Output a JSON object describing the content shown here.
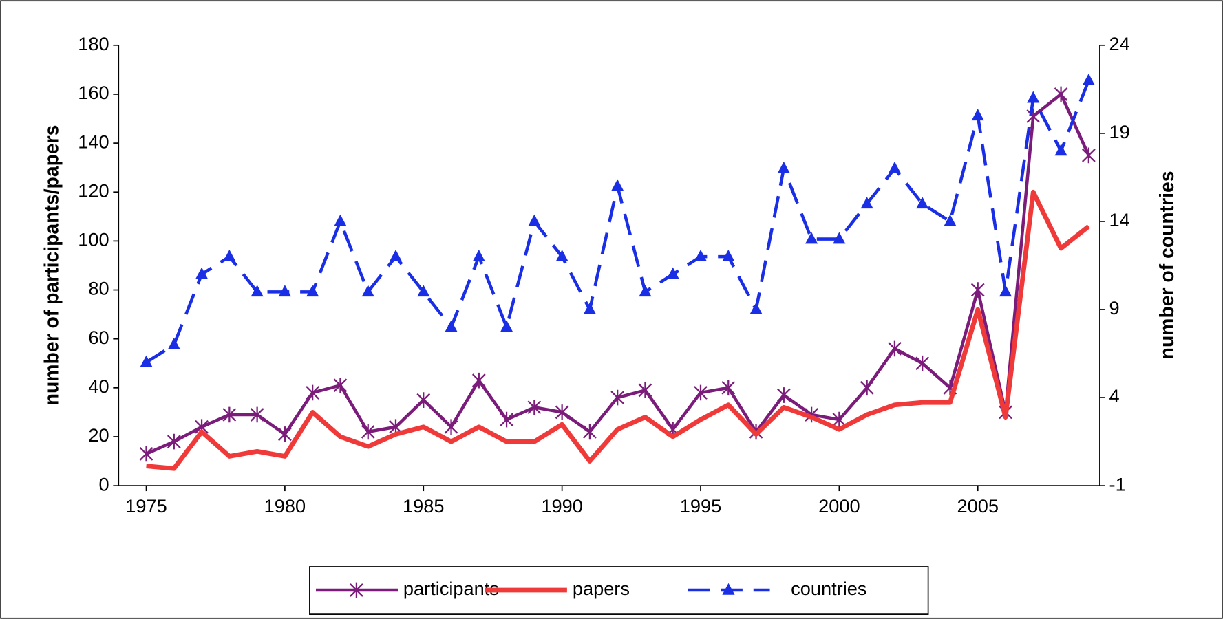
{
  "chart_data": {
    "type": "line",
    "ylabel": "number of participants/papers",
    "y2label": "number of countries",
    "x": [
      1975,
      1976,
      1977,
      1978,
      1979,
      1980,
      1981,
      1982,
      1983,
      1984,
      1985,
      1986,
      1987,
      1988,
      1989,
      1990,
      1991,
      1992,
      1993,
      1994,
      1995,
      1996,
      1997,
      1998,
      1999,
      2000,
      2001,
      2002,
      2003,
      2004,
      2005,
      2006,
      2007,
      2008,
      2009
    ],
    "series": [
      {
        "name": "participants",
        "color": "#7b1c7b",
        "marker": "asterisk",
        "dashed": false,
        "values": [
          13,
          18,
          24,
          29,
          29,
          21,
          38,
          41,
          22,
          24,
          35,
          24,
          43,
          27,
          32,
          30,
          22,
          36,
          39,
          23,
          38,
          40,
          22,
          37,
          29,
          27,
          40,
          56,
          50,
          40,
          80,
          30,
          151,
          160,
          135
        ]
      },
      {
        "name": "papers",
        "color": "#f03a3a",
        "marker": "none",
        "dashed": false,
        "values": [
          8,
          7,
          22,
          12,
          14,
          12,
          30,
          20,
          16,
          21,
          24,
          18,
          24,
          18,
          18,
          25,
          10,
          23,
          28,
          20,
          27,
          33,
          21,
          32,
          28,
          23,
          29,
          33,
          34,
          34,
          72,
          28,
          120,
          97,
          106
        ]
      },
      {
        "name": "countries",
        "color": "#1a2ee6",
        "marker": "triangle",
        "dashed": true,
        "axis": "y2",
        "values": [
          6,
          7,
          11,
          12,
          10,
          10,
          10,
          14,
          10,
          12,
          10,
          8,
          12,
          8,
          14,
          12,
          9,
          16,
          10,
          11,
          12,
          12,
          9,
          17,
          13,
          13,
          15,
          17,
          15,
          14,
          20,
          10,
          21,
          18,
          22
        ]
      }
    ],
    "xlim": [
      1974,
      2009.4
    ],
    "xticks": [
      1975,
      1980,
      1985,
      1990,
      1995,
      2000,
      2005
    ],
    "ylim": [
      0,
      180
    ],
    "yticks": [
      0,
      20,
      40,
      60,
      80,
      100,
      120,
      140,
      160,
      180
    ],
    "y2lim": [
      -1,
      24
    ],
    "y2ticks": [
      -1,
      4,
      9,
      14,
      19,
      24
    ],
    "legend": "bottom"
  }
}
